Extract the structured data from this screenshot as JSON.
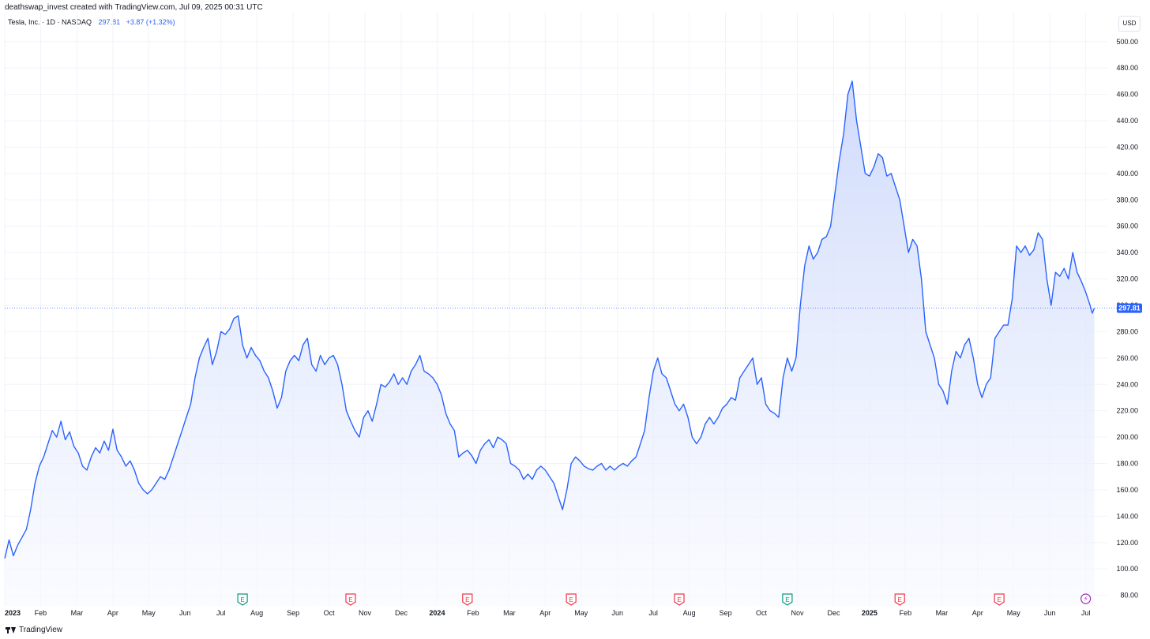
{
  "header": {
    "credit": "deathswap_invest created with TradingView.com, Jul 09, 2025 00:31 UTC",
    "symbol": "Tesla, Inc. · 1D · NASDAQ",
    "price": "297.81",
    "change": "+3.87 (+1.32%)",
    "currency": "USD"
  },
  "footer": {
    "brand": "TradingView"
  },
  "colors": {
    "line": "#2962ff",
    "area_top": "#cfdcfc",
    "grid": "#f0f3fa",
    "earnings_green": "#089981",
    "earnings_red": "#f23645",
    "event_purple": "#9c27b0"
  },
  "chart_data": {
    "type": "area",
    "title": "Tesla, Inc. · 1D · NASDAQ",
    "last_price": 297.81,
    "last_price_label": "297.81",
    "ylim": [
      72,
      522
    ],
    "xlim": [
      2023.0,
      2025.55
    ],
    "y_ticks": [
      "80.00",
      "100.00",
      "120.00",
      "140.00",
      "160.00",
      "180.00",
      "200.00",
      "220.00",
      "240.00",
      "260.00",
      "280.00",
      "300.00",
      "320.00",
      "340.00",
      "360.00",
      "380.00",
      "400.00",
      "420.00",
      "440.00",
      "460.00",
      "480.00",
      "500.00"
    ],
    "x_ticks": [
      {
        "label": "2023",
        "t": 2023.0,
        "year": true
      },
      {
        "label": "Feb",
        "t": 2023.083
      },
      {
        "label": "Mar",
        "t": 2023.167
      },
      {
        "label": "Apr",
        "t": 2023.25
      },
      {
        "label": "May",
        "t": 2023.333
      },
      {
        "label": "Jun",
        "t": 2023.417
      },
      {
        "label": "Jul",
        "t": 2023.5
      },
      {
        "label": "Aug",
        "t": 2023.583
      },
      {
        "label": "Sep",
        "t": 2023.667
      },
      {
        "label": "Oct",
        "t": 2023.75
      },
      {
        "label": "Nov",
        "t": 2023.833
      },
      {
        "label": "Dec",
        "t": 2023.917
      },
      {
        "label": "2024",
        "t": 2024.0,
        "year": true
      },
      {
        "label": "Feb",
        "t": 2024.083
      },
      {
        "label": "Mar",
        "t": 2024.167
      },
      {
        "label": "Apr",
        "t": 2024.25
      },
      {
        "label": "May",
        "t": 2024.333
      },
      {
        "label": "Jun",
        "t": 2024.417
      },
      {
        "label": "Jul",
        "t": 2024.5
      },
      {
        "label": "Aug",
        "t": 2024.583
      },
      {
        "label": "Sep",
        "t": 2024.667
      },
      {
        "label": "Oct",
        "t": 2024.75
      },
      {
        "label": "Nov",
        "t": 2024.833
      },
      {
        "label": "Dec",
        "t": 2024.917
      },
      {
        "label": "2025",
        "t": 2025.0,
        "year": true
      },
      {
        "label": "Feb",
        "t": 2025.083
      },
      {
        "label": "Mar",
        "t": 2025.167
      },
      {
        "label": "Apr",
        "t": 2025.25
      },
      {
        "label": "May",
        "t": 2025.333
      },
      {
        "label": "Jun",
        "t": 2025.417
      },
      {
        "label": "Jul",
        "t": 2025.5
      }
    ],
    "events": [
      {
        "t": 2023.55,
        "kind": "E",
        "color": "green"
      },
      {
        "t": 2023.8,
        "kind": "E",
        "color": "red"
      },
      {
        "t": 2024.07,
        "kind": "E",
        "color": "red"
      },
      {
        "t": 2024.31,
        "kind": "E",
        "color": "red"
      },
      {
        "t": 2024.56,
        "kind": "E",
        "color": "red"
      },
      {
        "t": 2024.81,
        "kind": "E",
        "color": "green"
      },
      {
        "t": 2025.07,
        "kind": "E",
        "color": "red"
      },
      {
        "t": 2025.3,
        "kind": "E",
        "color": "red"
      },
      {
        "t": 2025.5,
        "kind": "split",
        "color": "purple"
      }
    ],
    "series": [
      {
        "values": [
          [
            2023.0,
            108
          ],
          [
            2023.01,
            122
          ],
          [
            2023.02,
            110
          ],
          [
            2023.03,
            118
          ],
          [
            2023.04,
            124
          ],
          [
            2023.05,
            130
          ],
          [
            2023.06,
            145
          ],
          [
            2023.07,
            165
          ],
          [
            2023.08,
            178
          ],
          [
            2023.09,
            185
          ],
          [
            2023.1,
            195
          ],
          [
            2023.11,
            205
          ],
          [
            2023.12,
            200
          ],
          [
            2023.13,
            212
          ],
          [
            2023.14,
            198
          ],
          [
            2023.15,
            204
          ],
          [
            2023.16,
            193
          ],
          [
            2023.17,
            188
          ],
          [
            2023.18,
            178
          ],
          [
            2023.19,
            175
          ],
          [
            2023.2,
            185
          ],
          [
            2023.21,
            192
          ],
          [
            2023.22,
            188
          ],
          [
            2023.23,
            197
          ],
          [
            2023.24,
            190
          ],
          [
            2023.25,
            206
          ],
          [
            2023.26,
            190
          ],
          [
            2023.27,
            185
          ],
          [
            2023.28,
            178
          ],
          [
            2023.29,
            182
          ],
          [
            2023.3,
            175
          ],
          [
            2023.31,
            165
          ],
          [
            2023.32,
            160
          ],
          [
            2023.33,
            157
          ],
          [
            2023.34,
            160
          ],
          [
            2023.35,
            165
          ],
          [
            2023.36,
            170
          ],
          [
            2023.37,
            168
          ],
          [
            2023.38,
            175
          ],
          [
            2023.39,
            185
          ],
          [
            2023.4,
            195
          ],
          [
            2023.41,
            205
          ],
          [
            2023.42,
            215
          ],
          [
            2023.43,
            225
          ],
          [
            2023.44,
            245
          ],
          [
            2023.45,
            260
          ],
          [
            2023.46,
            268
          ],
          [
            2023.47,
            275
          ],
          [
            2023.48,
            255
          ],
          [
            2023.49,
            265
          ],
          [
            2023.5,
            280
          ],
          [
            2023.51,
            278
          ],
          [
            2023.52,
            282
          ],
          [
            2023.53,
            290
          ],
          [
            2023.54,
            292
          ],
          [
            2023.55,
            270
          ],
          [
            2023.56,
            260
          ],
          [
            2023.57,
            268
          ],
          [
            2023.58,
            262
          ],
          [
            2023.59,
            258
          ],
          [
            2023.6,
            250
          ],
          [
            2023.61,
            245
          ],
          [
            2023.62,
            235
          ],
          [
            2023.63,
            222
          ],
          [
            2023.64,
            230
          ],
          [
            2023.65,
            250
          ],
          [
            2023.66,
            258
          ],
          [
            2023.67,
            262
          ],
          [
            2023.68,
            258
          ],
          [
            2023.69,
            270
          ],
          [
            2023.7,
            275
          ],
          [
            2023.71,
            255
          ],
          [
            2023.72,
            250
          ],
          [
            2023.73,
            262
          ],
          [
            2023.74,
            255
          ],
          [
            2023.75,
            260
          ],
          [
            2023.76,
            262
          ],
          [
            2023.77,
            255
          ],
          [
            2023.78,
            240
          ],
          [
            2023.79,
            220
          ],
          [
            2023.8,
            212
          ],
          [
            2023.81,
            205
          ],
          [
            2023.82,
            200
          ],
          [
            2023.83,
            215
          ],
          [
            2023.84,
            220
          ],
          [
            2023.85,
            212
          ],
          [
            2023.86,
            225
          ],
          [
            2023.87,
            240
          ],
          [
            2023.88,
            238
          ],
          [
            2023.89,
            242
          ],
          [
            2023.9,
            248
          ],
          [
            2023.91,
            240
          ],
          [
            2023.92,
            245
          ],
          [
            2023.93,
            240
          ],
          [
            2023.94,
            250
          ],
          [
            2023.95,
            255
          ],
          [
            2023.96,
            262
          ],
          [
            2023.97,
            250
          ],
          [
            2023.98,
            248
          ],
          [
            2023.99,
            245
          ],
          [
            2024.0,
            240
          ],
          [
            2024.01,
            232
          ],
          [
            2024.02,
            218
          ],
          [
            2024.03,
            210
          ],
          [
            2024.04,
            205
          ],
          [
            2024.05,
            185
          ],
          [
            2024.06,
            188
          ],
          [
            2024.07,
            190
          ],
          [
            2024.08,
            186
          ],
          [
            2024.09,
            180
          ],
          [
            2024.1,
            190
          ],
          [
            2024.11,
            195
          ],
          [
            2024.12,
            198
          ],
          [
            2024.13,
            192
          ],
          [
            2024.14,
            200
          ],
          [
            2024.15,
            198
          ],
          [
            2024.16,
            195
          ],
          [
            2024.17,
            180
          ],
          [
            2024.18,
            178
          ],
          [
            2024.19,
            175
          ],
          [
            2024.2,
            168
          ],
          [
            2024.21,
            172
          ],
          [
            2024.22,
            168
          ],
          [
            2024.23,
            175
          ],
          [
            2024.24,
            178
          ],
          [
            2024.25,
            175
          ],
          [
            2024.26,
            170
          ],
          [
            2024.27,
            165
          ],
          [
            2024.28,
            155
          ],
          [
            2024.29,
            145
          ],
          [
            2024.3,
            160
          ],
          [
            2024.31,
            180
          ],
          [
            2024.32,
            185
          ],
          [
            2024.33,
            182
          ],
          [
            2024.34,
            178
          ],
          [
            2024.35,
            176
          ],
          [
            2024.36,
            175
          ],
          [
            2024.37,
            178
          ],
          [
            2024.38,
            180
          ],
          [
            2024.39,
            175
          ],
          [
            2024.4,
            178
          ],
          [
            2024.41,
            175
          ],
          [
            2024.42,
            178
          ],
          [
            2024.43,
            180
          ],
          [
            2024.44,
            178
          ],
          [
            2024.45,
            182
          ],
          [
            2024.46,
            185
          ],
          [
            2024.47,
            195
          ],
          [
            2024.48,
            205
          ],
          [
            2024.49,
            230
          ],
          [
            2024.5,
            250
          ],
          [
            2024.51,
            260
          ],
          [
            2024.52,
            248
          ],
          [
            2024.53,
            245
          ],
          [
            2024.54,
            235
          ],
          [
            2024.55,
            225
          ],
          [
            2024.56,
            220
          ],
          [
            2024.57,
            225
          ],
          [
            2024.58,
            215
          ],
          [
            2024.59,
            200
          ],
          [
            2024.6,
            195
          ],
          [
            2024.61,
            200
          ],
          [
            2024.62,
            210
          ],
          [
            2024.63,
            215
          ],
          [
            2024.64,
            210
          ],
          [
            2024.65,
            215
          ],
          [
            2024.66,
            222
          ],
          [
            2024.67,
            225
          ],
          [
            2024.68,
            230
          ],
          [
            2024.69,
            228
          ],
          [
            2024.7,
            245
          ],
          [
            2024.71,
            250
          ],
          [
            2024.72,
            255
          ],
          [
            2024.73,
            260
          ],
          [
            2024.74,
            240
          ],
          [
            2024.75,
            245
          ],
          [
            2024.76,
            225
          ],
          [
            2024.77,
            220
          ],
          [
            2024.78,
            218
          ],
          [
            2024.79,
            215
          ],
          [
            2024.8,
            245
          ],
          [
            2024.81,
            260
          ],
          [
            2024.82,
            250
          ],
          [
            2024.83,
            260
          ],
          [
            2024.84,
            300
          ],
          [
            2024.85,
            330
          ],
          [
            2024.86,
            345
          ],
          [
            2024.87,
            335
          ],
          [
            2024.88,
            340
          ],
          [
            2024.89,
            350
          ],
          [
            2024.9,
            352
          ],
          [
            2024.91,
            360
          ],
          [
            2024.92,
            385
          ],
          [
            2024.93,
            410
          ],
          [
            2024.94,
            430
          ],
          [
            2024.95,
            460
          ],
          [
            2024.96,
            470
          ],
          [
            2024.97,
            440
          ],
          [
            2024.98,
            420
          ],
          [
            2024.99,
            400
          ],
          [
            2025.0,
            398
          ],
          [
            2025.01,
            405
          ],
          [
            2025.02,
            415
          ],
          [
            2025.03,
            412
          ],
          [
            2025.04,
            398
          ],
          [
            2025.05,
            400
          ],
          [
            2025.06,
            390
          ],
          [
            2025.07,
            380
          ],
          [
            2025.08,
            360
          ],
          [
            2025.09,
            340
          ],
          [
            2025.1,
            350
          ],
          [
            2025.11,
            345
          ],
          [
            2025.12,
            320
          ],
          [
            2025.13,
            280
          ],
          [
            2025.14,
            270
          ],
          [
            2025.15,
            260
          ],
          [
            2025.16,
            240
          ],
          [
            2025.17,
            235
          ],
          [
            2025.18,
            225
          ],
          [
            2025.19,
            250
          ],
          [
            2025.2,
            265
          ],
          [
            2025.21,
            260
          ],
          [
            2025.22,
            270
          ],
          [
            2025.23,
            275
          ],
          [
            2025.24,
            260
          ],
          [
            2025.25,
            240
          ],
          [
            2025.26,
            230
          ],
          [
            2025.27,
            240
          ],
          [
            2025.28,
            245
          ],
          [
            2025.29,
            275
          ],
          [
            2025.3,
            280
          ],
          [
            2025.31,
            285
          ],
          [
            2025.32,
            285
          ],
          [
            2025.33,
            305
          ],
          [
            2025.34,
            345
          ],
          [
            2025.35,
            340
          ],
          [
            2025.36,
            345
          ],
          [
            2025.37,
            338
          ],
          [
            2025.38,
            342
          ],
          [
            2025.39,
            355
          ],
          [
            2025.4,
            350
          ],
          [
            2025.41,
            320
          ],
          [
            2025.42,
            300
          ],
          [
            2025.43,
            325
          ],
          [
            2025.44,
            322
          ],
          [
            2025.45,
            328
          ],
          [
            2025.46,
            320
          ],
          [
            2025.47,
            340
          ],
          [
            2025.48,
            325
          ],
          [
            2025.49,
            318
          ],
          [
            2025.5,
            310
          ],
          [
            2025.51,
            300
          ],
          [
            2025.515,
            294
          ],
          [
            2025.52,
            297.81
          ]
        ]
      }
    ]
  }
}
